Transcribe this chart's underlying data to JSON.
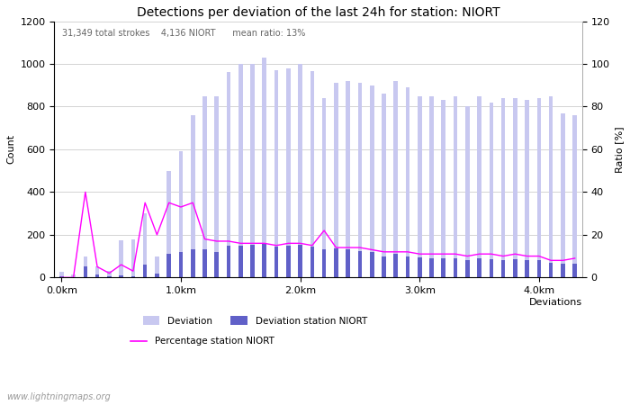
{
  "title": "Detections per deviation of the last 24h for station: NIORT",
  "subtitle": "31,349 total strokes    4,136 NIORT      mean ratio: 13%",
  "xlabel_right": "Deviations",
  "ylabel_left": "Count",
  "ylabel_right": "Ratio [%]",
  "ylim_left": [
    0,
    1200
  ],
  "ylim_right": [
    0,
    120
  ],
  "xtick_labels": [
    "0.0km",
    "1.0km",
    "2.0km",
    "3.0km",
    "4.0km"
  ],
  "xtick_positions": [
    0,
    10,
    20,
    30,
    40
  ],
  "watermark": "www.lightningmaps.org",
  "deviation_bars": [
    25,
    15,
    100,
    50,
    30,
    175,
    180,
    300,
    100,
    500,
    590,
    760,
    850,
    850,
    960,
    1000,
    1000,
    1030,
    970,
    980,
    1000,
    965,
    840,
    910,
    920,
    910,
    900,
    860,
    920,
    890,
    850,
    850,
    830,
    850,
    800,
    850,
    820,
    840,
    840,
    830,
    840,
    850,
    770,
    760
  ],
  "station_bars": [
    5,
    2,
    50,
    15,
    5,
    10,
    5,
    60,
    20,
    110,
    120,
    130,
    130,
    120,
    150,
    150,
    155,
    160,
    145,
    150,
    155,
    145,
    130,
    135,
    130,
    125,
    120,
    100,
    110,
    100,
    95,
    90,
    90,
    90,
    80,
    90,
    85,
    80,
    85,
    80,
    80,
    70,
    65,
    65
  ],
  "ratio_line": [
    0,
    0,
    40,
    5,
    2,
    6,
    3,
    35,
    20,
    35,
    33,
    35,
    18,
    17,
    17,
    16,
    16,
    16,
    15,
    16,
    16,
    15,
    22,
    14,
    14,
    14,
    13,
    12,
    12,
    12,
    11,
    11,
    11,
    11,
    10,
    11,
    11,
    10,
    11,
    10,
    10,
    8,
    8,
    9
  ],
  "bar_color_light": "#c8c8f0",
  "bar_color_dark": "#6060c8",
  "line_color": "#ff00ff",
  "background_color": "#ffffff",
  "grid_color": "#cccccc",
  "title_fontsize": 10,
  "axis_fontsize": 8,
  "tick_fontsize": 8,
  "watermark_fontsize": 7,
  "subtitle_color": "#666666"
}
